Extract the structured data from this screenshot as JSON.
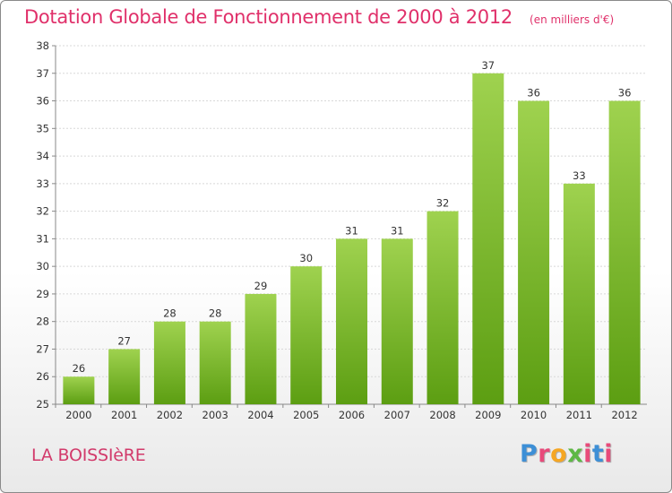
{
  "header": {
    "title": "Dotation Globale de Fonctionnement de 2000 à 2012",
    "unit": "(en milliers d'€)"
  },
  "footer": {
    "commune": "LA BOISSIèRE",
    "brand": "Proxiti",
    "brand_colors": [
      "#3d8fd6",
      "#e84a7a",
      "#f5a623",
      "#5db845",
      "#e84a7a",
      "#3d8fd6",
      "#e84a7a"
    ]
  },
  "colors": {
    "bar_top": "#9fd24f",
    "bar_bottom": "#5c9e12",
    "grid": "#d8d8d8",
    "axis": "#888888"
  },
  "chart_data": {
    "type": "bar",
    "title": "Dotation Globale de Fonctionnement de 2000 à 2012",
    "subtitle": "(en milliers d'€)",
    "categories": [
      "2000",
      "2001",
      "2002",
      "2003",
      "2004",
      "2005",
      "2006",
      "2007",
      "2008",
      "2009",
      "2010",
      "2011",
      "2012"
    ],
    "values": [
      26,
      27,
      28,
      28,
      29,
      30,
      31,
      31,
      32,
      37,
      36,
      33,
      36
    ],
    "ylim": [
      25,
      38
    ],
    "yticks": [
      "25",
      "26",
      "27",
      "28",
      "29",
      "30",
      "31",
      "32",
      "33",
      "34",
      "35",
      "36",
      "37",
      "38"
    ],
    "grid": true,
    "data_labels": true,
    "legend": "none"
  }
}
